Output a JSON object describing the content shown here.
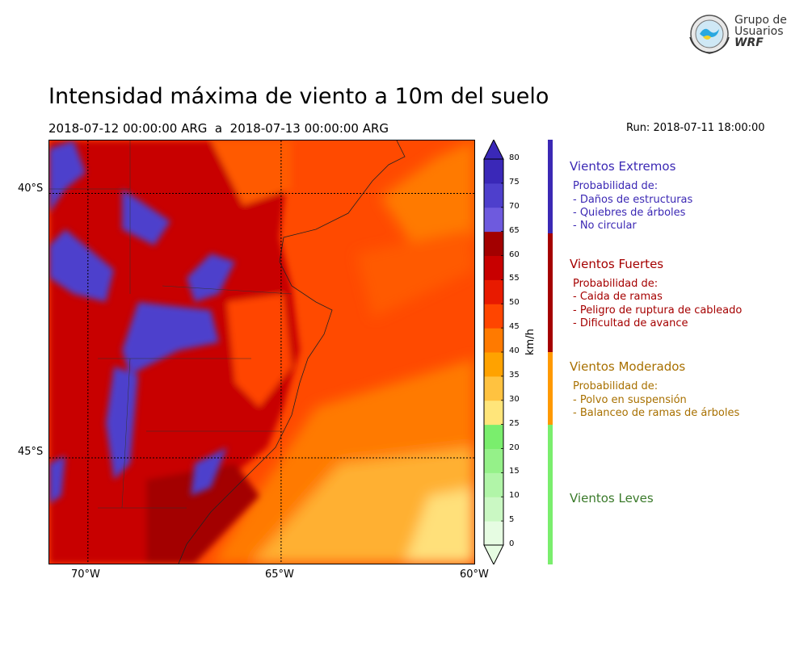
{
  "title": "Intensidad máxima de viento a 10m del suelo",
  "subtitle": "2018-07-12 00:00:00 ARG  a  2018-07-13 00:00:00 ARG",
  "run": "Run: 2018-07-11 18:00:00",
  "logo": {
    "line1": "Grupo de",
    "line2": "Usuarios",
    "line3": "WRF"
  },
  "map": {
    "lat_labels": [
      "40°S",
      "45°S"
    ],
    "lon_labels": [
      "70°W",
      "65°W",
      "60°W"
    ],
    "lon_range": [
      -71,
      -60
    ],
    "lat_range": [
      -39,
      -47
    ]
  },
  "colorbar": {
    "units": "km/h",
    "tick_values": [
      0,
      5,
      10,
      15,
      20,
      25,
      30,
      35,
      40,
      45,
      50,
      55,
      60,
      65,
      70,
      75,
      80
    ],
    "tick_labels": [
      "0",
      "5",
      "10",
      "15",
      "20",
      "25",
      "30",
      "35",
      "40",
      "45",
      "50",
      "55",
      "60",
      "65",
      "70",
      "75",
      "80"
    ],
    "colors": [
      "#e6fce2",
      "#caf8c3",
      "#b1f5a8",
      "#95f189",
      "#7aee6d",
      "#ffe57a",
      "#ffc240",
      "#ffa200",
      "#ff7a00",
      "#ff4500",
      "#e81a00",
      "#c80000",
      "#a30000",
      "#6e5ade",
      "#4e3fcc",
      "#3a28b8"
    ]
  },
  "categories": [
    {
      "title": "Vientos Extremos",
      "color": "#3b28b4",
      "text_color": "#3b28b4",
      "lines": [
        "Probabilidad de:",
        "- Daños de estructuras",
        "- Quiebres de árboles",
        "- No circular"
      ]
    },
    {
      "title": "Vientos Fuertes",
      "color": "#a50000",
      "text_color": "#a50000",
      "lines": [
        "Probabilidad de:",
        "- Caida de ramas",
        "- Peligro de ruptura de cableado",
        "- Dificultad de avance"
      ]
    },
    {
      "title": "Vientos Moderados",
      "color": "#ff9900",
      "text_color": "#a87000",
      "lines": [
        "Probabilidad de:",
        "- Polvo en suspensión",
        "- Balanceo de ramas de árboles"
      ]
    },
    {
      "title": "Vientos Leves",
      "color": "#7aee6d",
      "text_color": "#3a7a2a",
      "lines": []
    }
  ]
}
